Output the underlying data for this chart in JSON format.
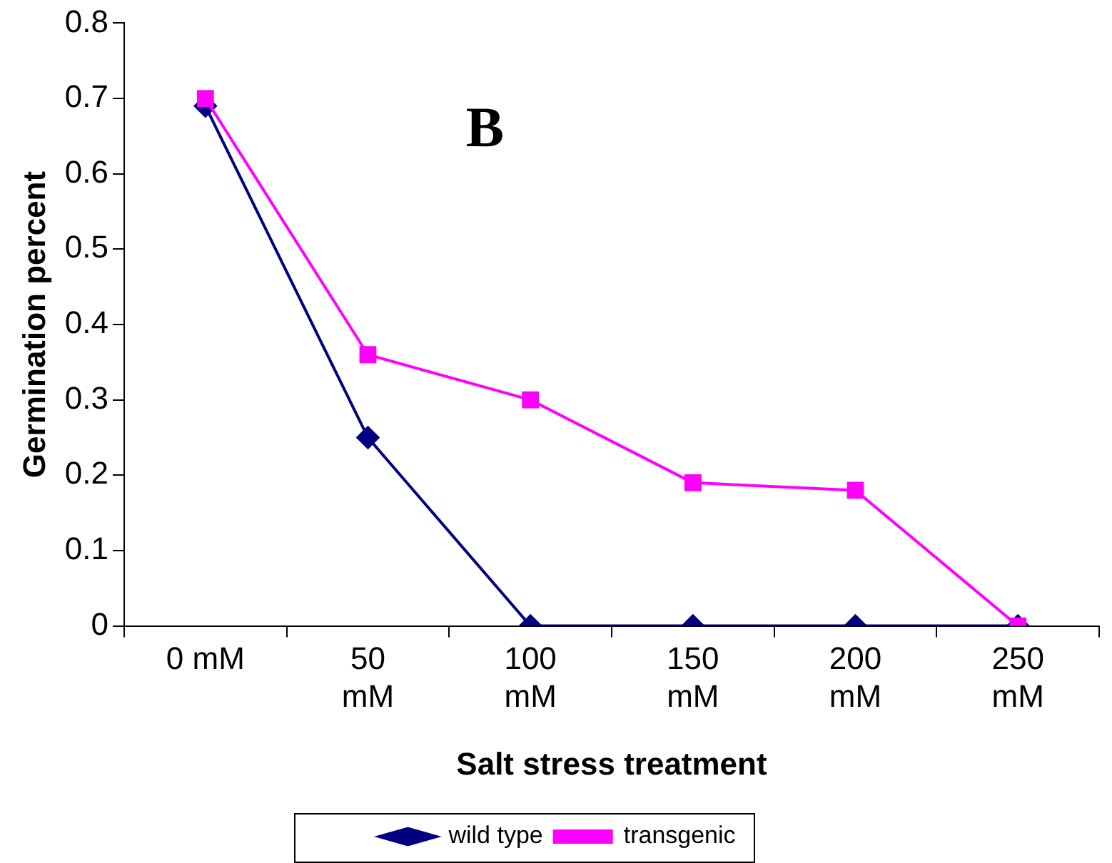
{
  "chart_data": {
    "type": "line",
    "xlabel": "Salt stress treatment",
    "ylabel": "Germination percent",
    "annotations": [
      "B"
    ],
    "categories": [
      "0 mM",
      "50 mM",
      "100 mM",
      "150 mM",
      "200 mM",
      "250 mM"
    ],
    "series": [
      {
        "name": "wild type",
        "color": "#000080",
        "marker": "diamond",
        "values": [
          0.69,
          0.25,
          0,
          0,
          0,
          0
        ]
      },
      {
        "name": "transgenic",
        "color": "#ff00ff",
        "marker": "square",
        "values": [
          0.7,
          0.36,
          0.3,
          0.19,
          0.18,
          0
        ]
      }
    ],
    "ylim": [
      0,
      0.8
    ],
    "yticks": [
      0,
      0.1,
      0.2,
      0.3,
      0.4,
      0.5,
      0.6,
      0.7,
      0.8
    ],
    "grid": false,
    "legend": "bottom",
    "line_style": "solid"
  }
}
